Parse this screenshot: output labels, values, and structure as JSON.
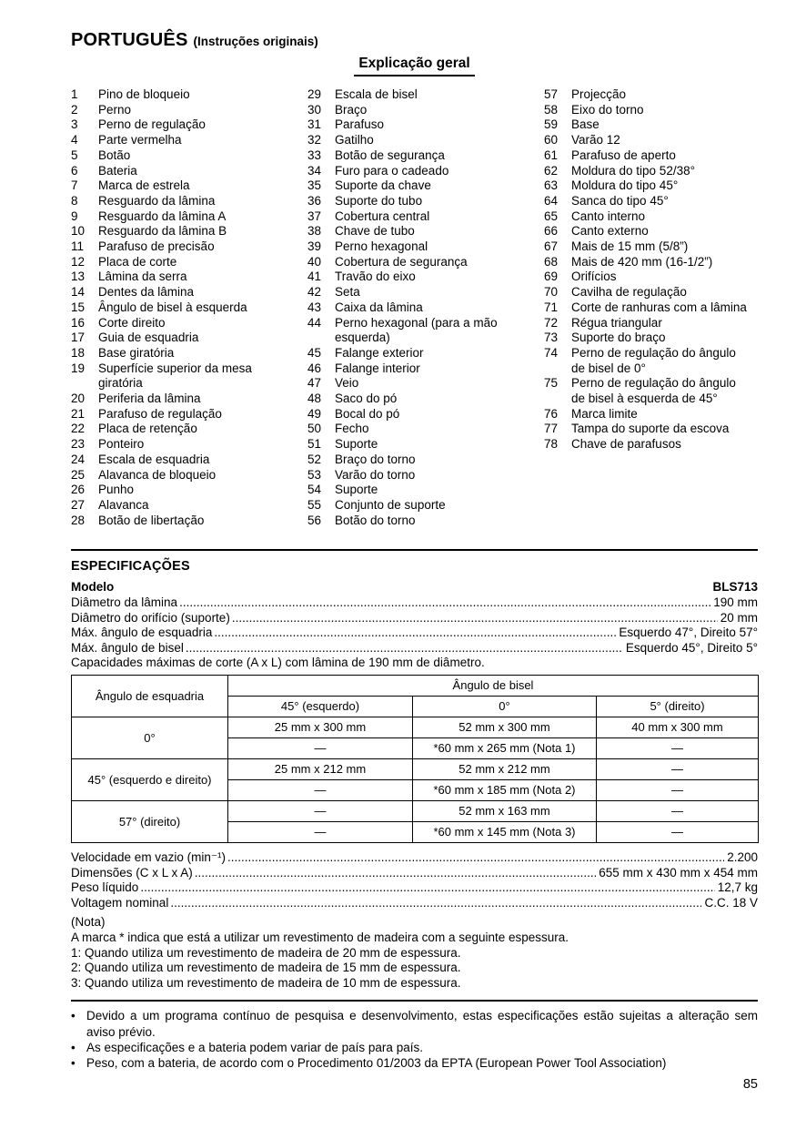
{
  "theme": {
    "background": "#ffffff",
    "text": "#000000"
  },
  "page": {
    "language_title": "PORTUGUÊS",
    "language_subtitle": "(Instruções originais)",
    "page_number": "85"
  },
  "legend": {
    "title": "Explicação geral",
    "columns": [
      [
        {
          "n": "1",
          "t": "Pino de bloqueio"
        },
        {
          "n": "2",
          "t": "Perno"
        },
        {
          "n": "3",
          "t": "Perno de regulação"
        },
        {
          "n": "4",
          "t": "Parte vermelha"
        },
        {
          "n": "5",
          "t": "Botão"
        },
        {
          "n": "6",
          "t": "Bateria"
        },
        {
          "n": "7",
          "t": "Marca de estrela"
        },
        {
          "n": "8",
          "t": "Resguardo da lâmina"
        },
        {
          "n": "9",
          "t": "Resguardo da lâmina A"
        },
        {
          "n": "10",
          "t": "Resguardo da lâmina B"
        },
        {
          "n": "11",
          "t": "Parafuso de precisão"
        },
        {
          "n": "12",
          "t": "Placa de corte"
        },
        {
          "n": "13",
          "t": "Lâmina da serra"
        },
        {
          "n": "14",
          "t": "Dentes da lâmina"
        },
        {
          "n": "15",
          "t": "Ângulo de bisel à esquerda"
        },
        {
          "n": "16",
          "t": "Corte direito"
        },
        {
          "n": "17",
          "t": "Guia de esquadria"
        },
        {
          "n": "18",
          "t": "Base giratória"
        },
        {
          "n": "19",
          "t": "Superfície superior da mesa\ngiratória"
        },
        {
          "n": "20",
          "t": "Periferia da lâmina"
        },
        {
          "n": "21",
          "t": "Parafuso de regulação"
        },
        {
          "n": "22",
          "t": "Placa de retenção"
        },
        {
          "n": "23",
          "t": "Ponteiro"
        },
        {
          "n": "24",
          "t": "Escala de esquadria"
        },
        {
          "n": "25",
          "t": "Alavanca de bloqueio"
        },
        {
          "n": "26",
          "t": "Punho"
        },
        {
          "n": "27",
          "t": "Alavanca"
        },
        {
          "n": "28",
          "t": "Botão de libertação"
        }
      ],
      [
        {
          "n": "29",
          "t": "Escala de bisel"
        },
        {
          "n": "30",
          "t": "Braço"
        },
        {
          "n": "31",
          "t": "Parafuso"
        },
        {
          "n": "32",
          "t": "Gatilho"
        },
        {
          "n": "33",
          "t": "Botão de segurança"
        },
        {
          "n": "34",
          "t": "Furo para o cadeado"
        },
        {
          "n": "35",
          "t": "Suporte da chave"
        },
        {
          "n": "36",
          "t": "Suporte do tubo"
        },
        {
          "n": "37",
          "t": "Cobertura central"
        },
        {
          "n": "38",
          "t": "Chave de tubo"
        },
        {
          "n": "39",
          "t": "Perno hexagonal"
        },
        {
          "n": "40",
          "t": "Cobertura de segurança"
        },
        {
          "n": "41",
          "t": "Travão do eixo"
        },
        {
          "n": "42",
          "t": "Seta"
        },
        {
          "n": "43",
          "t": "Caixa da lâmina"
        },
        {
          "n": "44",
          "t": "Perno hexagonal (para a mão\nesquerda)"
        },
        {
          "n": "45",
          "t": "Falange exterior"
        },
        {
          "n": "46",
          "t": "Falange interior"
        },
        {
          "n": "47",
          "t": "Veio"
        },
        {
          "n": "48",
          "t": "Saco do pó"
        },
        {
          "n": "49",
          "t": "Bocal do pó"
        },
        {
          "n": "50",
          "t": "Fecho"
        },
        {
          "n": "51",
          "t": "Suporte"
        },
        {
          "n": "52",
          "t": "Braço do torno"
        },
        {
          "n": "53",
          "t": "Varão do torno"
        },
        {
          "n": "54",
          "t": "Suporte"
        },
        {
          "n": "55",
          "t": "Conjunto de suporte"
        },
        {
          "n": "56",
          "t": "Botão do torno"
        }
      ],
      [
        {
          "n": "57",
          "t": "Projecção"
        },
        {
          "n": "58",
          "t": "Eixo do torno"
        },
        {
          "n": "59",
          "t": "Base"
        },
        {
          "n": "60",
          "t": "Varão 12"
        },
        {
          "n": "61",
          "t": "Parafuso de aperto"
        },
        {
          "n": "62",
          "t": "Moldura do tipo 52/38°"
        },
        {
          "n": "63",
          "t": "Moldura do tipo 45°"
        },
        {
          "n": "64",
          "t": "Sanca do tipo 45°"
        },
        {
          "n": "65",
          "t": "Canto interno"
        },
        {
          "n": "66",
          "t": "Canto externo"
        },
        {
          "n": "67",
          "t": "Mais de 15 mm (5/8”)"
        },
        {
          "n": "68",
          "t": "Mais de 420 mm (16-1/2”)"
        },
        {
          "n": "69",
          "t": "Orifícios"
        },
        {
          "n": "70",
          "t": "Cavilha de regulação"
        },
        {
          "n": "71",
          "t": "Corte de ranhuras com a lâmina"
        },
        {
          "n": "72",
          "t": "Régua triangular"
        },
        {
          "n": "73",
          "t": "Suporte do braço"
        },
        {
          "n": "74",
          "t": "Perno de regulação do ângulo\nde bisel de 0°"
        },
        {
          "n": "75",
          "t": "Perno de regulação do ângulo\nde bisel à esquerda de 45°"
        },
        {
          "n": "76",
          "t": "Marca limite"
        },
        {
          "n": "77",
          "t": "Tampa do suporte da escova"
        },
        {
          "n": "78",
          "t": "Chave de parafusos"
        }
      ]
    ]
  },
  "specs": {
    "heading": "ESPECIFICAÇÕES",
    "model_label": "Modelo",
    "model_value": "BLS713",
    "lines_top": [
      {
        "label": "Diâmetro da lâmina",
        "value": "190 mm"
      },
      {
        "label": "Diâmetro do orifício (suporte)",
        "value": "20 mm"
      },
      {
        "label": "Máx. ângulo de esquadria",
        "value": "Esquerdo 47°, Direito 57°"
      },
      {
        "label": "Máx. ângulo de bisel",
        "value": "Esquerdo 45°, Direito 5°"
      }
    ],
    "capacities_intro": "Capacidades máximas de corte (A x L) com lâmina de 190 mm de diâmetro.",
    "lines_bottom": [
      {
        "label": "Velocidade em vazio (min⁻¹)",
        "value": "2.200"
      },
      {
        "label": "Dimensões (C x L x A)",
        "value": "655 mm x 430 mm x 454 mm"
      },
      {
        "label": "Peso líquido",
        "value": "12,7 kg"
      },
      {
        "label": "Voltagem nominal",
        "value": "C.C. 18 V"
      }
    ]
  },
  "capacity_table": {
    "corner_header": "Ângulo de esquadria",
    "group_header": "Ângulo de bisel",
    "col_headers": [
      "45° (esquerdo)",
      "0°",
      "5° (direito)"
    ],
    "row_groups": [
      {
        "label": "0°",
        "rows": [
          [
            "25 mm x 300 mm",
            "52 mm x 300 mm",
            "40 mm x 300 mm"
          ],
          [
            "—",
            "*60 mm x 265 mm (Nota 1)",
            "—"
          ]
        ]
      },
      {
        "label": "45° (esquerdo e direito)",
        "rows": [
          [
            "25 mm x 212 mm",
            "52 mm x 212 mm",
            "—"
          ],
          [
            "—",
            "*60 mm x 185 mm (Nota 2)",
            "—"
          ]
        ]
      },
      {
        "label": "57° (direito)",
        "rows": [
          [
            "—",
            "52 mm x 163 mm",
            "—"
          ],
          [
            "—",
            "*60 mm x 145 mm (Nota 3)",
            "—"
          ]
        ]
      }
    ]
  },
  "notes": {
    "heading": "(Nota)",
    "lines": [
      "A marca * indica que está a utilizar um revestimento de madeira com a seguinte espessura.",
      "1: Quando utiliza um revestimento de madeira de 20 mm de espessura.",
      "2: Quando utiliza um revestimento de madeira de 15 mm de espessura.",
      "3: Quando utiliza um revestimento de madeira de 10 mm de espessura."
    ]
  },
  "footnotes": [
    "Devido a um programa contínuo de pesquisa e desenvolvimento, estas especificações estão sujeitas a alteração sem aviso prévio.",
    "As especificações e a bateria podem variar de país para país.",
    "Peso, com a bateria, de acordo com o Procedimento 01/2003 da EPTA (European Power Tool Association)"
  ]
}
